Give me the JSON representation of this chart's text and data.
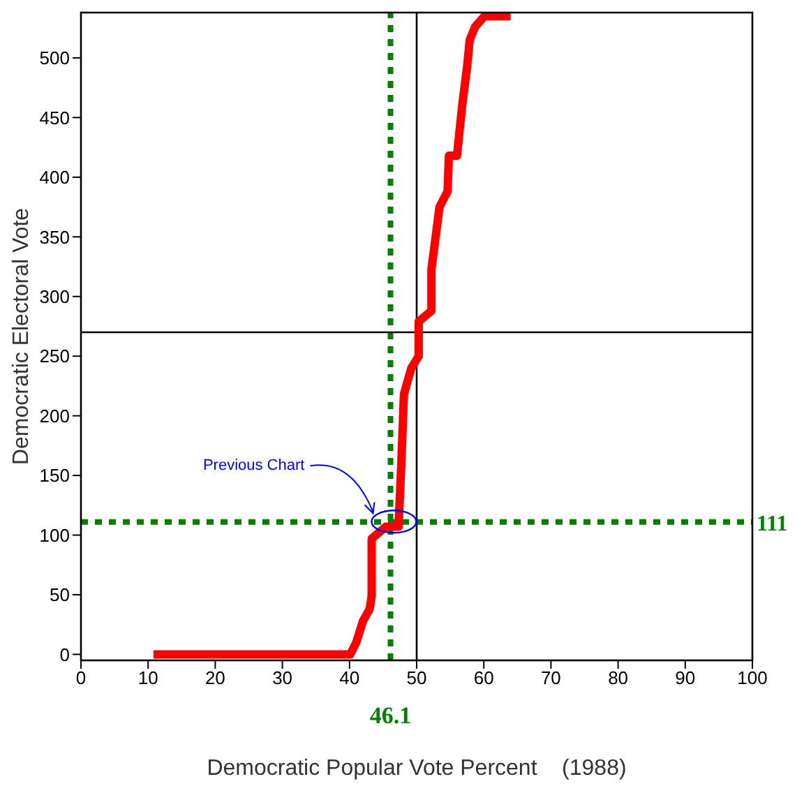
{
  "chart_data": {
    "type": "line",
    "xlabel": "Democratic Popular Vote Percent    (1988)",
    "ylabel": "Democratic Electoral Vote",
    "xlim": [
      0,
      100
    ],
    "ylim": [
      -5,
      538
    ],
    "xticks": [
      0,
      10,
      20,
      30,
      40,
      50,
      60,
      70,
      80,
      90,
      100
    ],
    "yticks": [
      0,
      50,
      100,
      150,
      200,
      250,
      300,
      350,
      400,
      450,
      500
    ],
    "grid": false,
    "marker": "none",
    "line_style": "solid",
    "series": [
      {
        "color": "#ff0000",
        "x": [
          10.8,
          40.1,
          41,
          42,
          43,
          43.3,
          43.3,
          45.4,
          47.3,
          47.7,
          48.1,
          49.2,
          50.3,
          50.3,
          52.2,
          52.2,
          53.4,
          54.6,
          54.8,
          56,
          56.8,
          57.5,
          57.9,
          58.7,
          60.1,
          64
        ],
        "values": [
          0,
          0,
          10,
          28,
          38,
          49,
          97,
          107,
          107,
          158,
          218,
          240,
          250,
          279,
          288,
          323,
          375,
          388,
          418,
          418,
          461,
          492,
          515,
          526,
          535,
          535
        ]
      }
    ],
    "ref_lines": [
      {
        "axis": "x",
        "value": 46.1,
        "label": "46.1",
        "color": "#008000",
        "line_style": "dotted"
      },
      {
        "axis": "y",
        "value": 111,
        "label": "111",
        "color": "#008000",
        "line_style": "dotted"
      },
      {
        "axis": "x",
        "value": 50,
        "color": "#000000",
        "line_style": "solid"
      },
      {
        "axis": "y",
        "value": 270,
        "color": "#000000",
        "line_style": "solid"
      }
    ],
    "annotations": [
      "Previous Chart"
    ]
  }
}
